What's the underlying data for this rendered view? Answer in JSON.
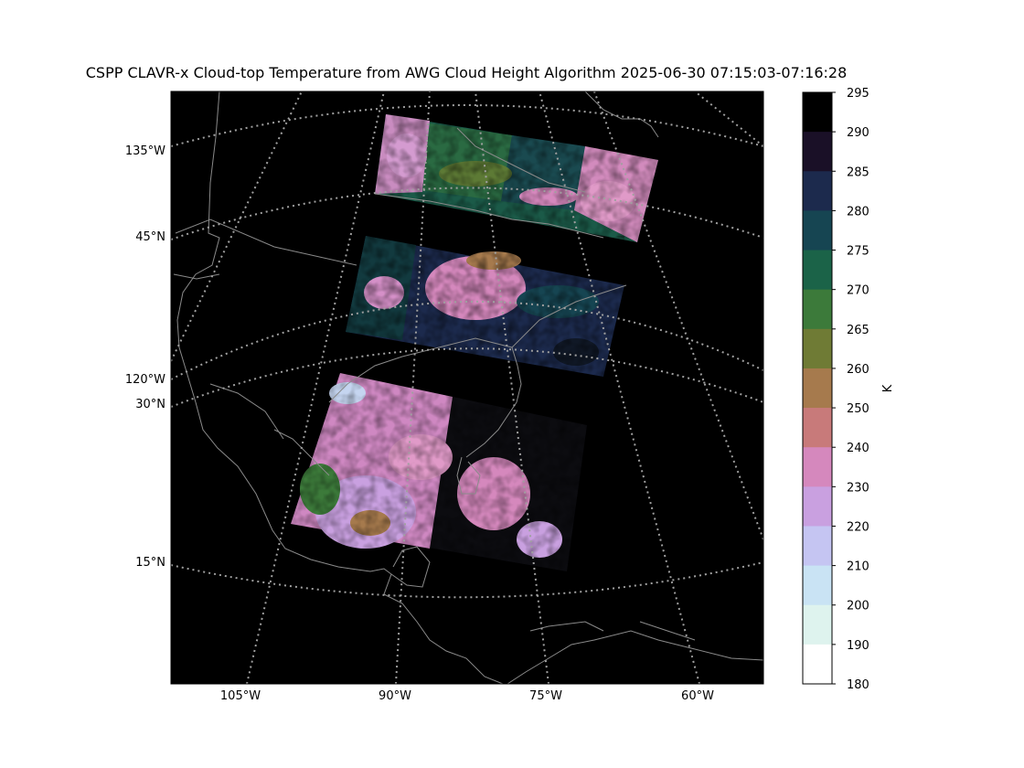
{
  "title": "CSPP CLAVR-x Cloud-top Temperature from AWG Cloud Height Algorithm 2025-06-30 07:15:03-07:16:28",
  "map": {
    "background_color": "#000000",
    "coastline_color": "#8a8a8a",
    "graticule_color": "#a0a0a0",
    "graticule_style": "dotted",
    "lat_labels": [
      "45°N",
      "30°N",
      "15°N"
    ],
    "lon_labels_left": [
      "135°W",
      "120°W"
    ],
    "lon_labels_bottom": [
      "105°W",
      "90°W",
      "75°W",
      "60°W"
    ],
    "swaths": [
      {
        "name": "north-swath",
        "dominant": [
          "#1b6348",
          "#3c7a3a",
          "#d58bbd",
          "#164552"
        ]
      },
      {
        "name": "middle-swath",
        "dominant": [
          "#1c2a4d",
          "#d58bbd",
          "#164552",
          "#000000"
        ]
      },
      {
        "name": "south-swath",
        "dominant": [
          "#d58bbd",
          "#c89fe0",
          "#000000",
          "#a67a4d"
        ]
      }
    ]
  },
  "colorbar": {
    "unit_label": "K",
    "ticks": [
      "295",
      "290",
      "285",
      "280",
      "275",
      "270",
      "265",
      "260",
      "250",
      "240",
      "230",
      "220",
      "210",
      "200",
      "190",
      "180"
    ],
    "colors": [
      "#000000",
      "#1a1027",
      "#1c2a4d",
      "#164552",
      "#1b6348",
      "#3c7a3a",
      "#6f7b35",
      "#a67a4d",
      "#c87a7a",
      "#d588bd",
      "#c9a0e0",
      "#c5c5f2",
      "#c9e3f4",
      "#def3ee",
      "#ffffff"
    ]
  }
}
